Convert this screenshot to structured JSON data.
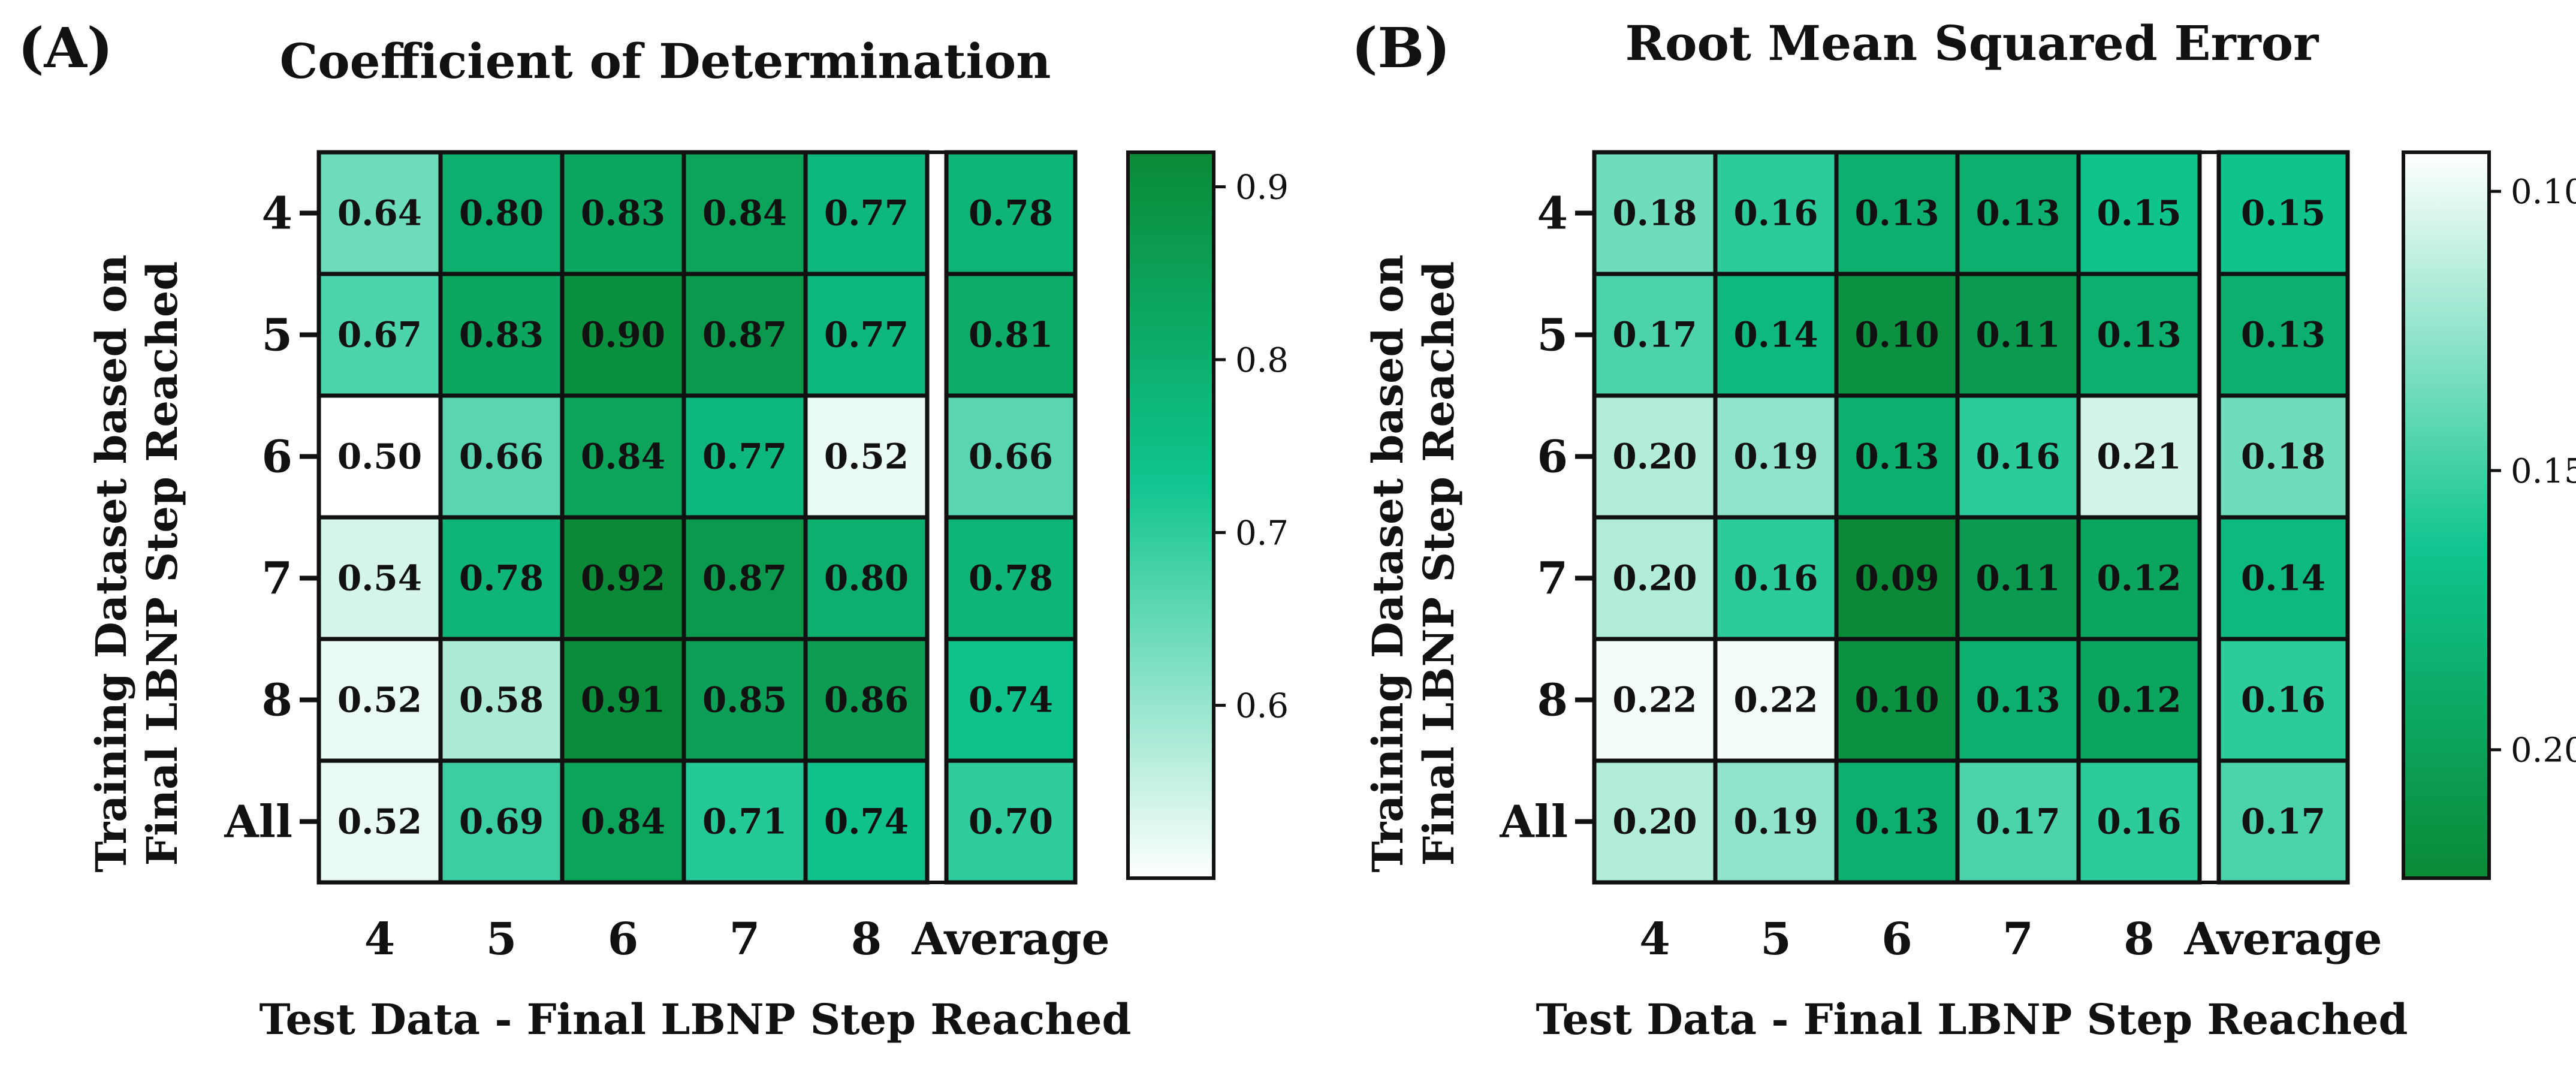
{
  "chart_data": [
    {
      "type": "heatmap",
      "panel_label": "(A)",
      "title": "Coefficient of  Determination",
      "xlabel": "Test Data - Final LBNP Step  Reached",
      "ylabel_lines": [
        "Training Dataset based on",
        "Final LBNP Step Reached"
      ],
      "columns": [
        "4",
        "5",
        "6",
        "7",
        "8",
        "Average"
      ],
      "rows": [
        "4",
        "5",
        "6",
        "7",
        "8",
        "All"
      ],
      "values": [
        [
          0.64,
          0.8,
          0.83,
          0.84,
          0.77,
          0.78
        ],
        [
          0.67,
          0.83,
          0.9,
          0.87,
          0.77,
          0.81
        ],
        [
          0.5,
          0.66,
          0.84,
          0.77,
          0.52,
          0.66
        ],
        [
          0.54,
          0.78,
          0.92,
          0.87,
          0.8,
          0.78
        ],
        [
          0.52,
          0.58,
          0.91,
          0.85,
          0.86,
          0.74
        ],
        [
          0.52,
          0.69,
          0.84,
          0.71,
          0.74,
          0.7
        ]
      ],
      "labels": [
        [
          "0.64",
          "0.80",
          "0.83",
          "0.84",
          "0.77",
          "0.78"
        ],
        [
          "0.67",
          "0.83",
          "0.90",
          "0.87",
          "0.77",
          "0.81"
        ],
        [
          "0.50",
          "0.66",
          "0.84",
          "0.77",
          "0.52",
          "0.66"
        ],
        [
          "0.54",
          "0.78",
          "0.92",
          "0.87",
          "0.80",
          "0.78"
        ],
        [
          "0.52",
          "0.58",
          "0.91",
          "0.85",
          "0.86",
          "0.74"
        ],
        [
          "0.52",
          "0.69",
          "0.84",
          "0.71",
          "0.74",
          "0.70"
        ]
      ],
      "colorbar": {
        "min": 0.5,
        "max": 0.92,
        "ticks": [
          0.6,
          0.7,
          0.8,
          0.9
        ],
        "tick_labels": [
          "0.6",
          "0.7",
          "0.8",
          "0.9"
        ],
        "low_color": "#ffffff",
        "mid_color": "#0fc48e",
        "high_color": "#0a8a36",
        "reversed": false
      }
    },
    {
      "type": "heatmap",
      "panel_label": "(B)",
      "title": "Root Mean Squared Error",
      "xlabel": "Test Data - Final LBNP Step  Reached",
      "ylabel_lines": [
        "Training Dataset based on",
        "Final LBNP Step Reached"
      ],
      "columns": [
        "4",
        "5",
        "6",
        "7",
        "8",
        "Average"
      ],
      "rows": [
        "4",
        "5",
        "6",
        "7",
        "8",
        "All"
      ],
      "values": [
        [
          0.18,
          0.16,
          0.13,
          0.13,
          0.15,
          0.15
        ],
        [
          0.17,
          0.14,
          0.1,
          0.11,
          0.13,
          0.13
        ],
        [
          0.2,
          0.19,
          0.13,
          0.16,
          0.21,
          0.18
        ],
        [
          0.2,
          0.16,
          0.09,
          0.11,
          0.12,
          0.14
        ],
        [
          0.22,
          0.22,
          0.1,
          0.13,
          0.12,
          0.16
        ],
        [
          0.2,
          0.19,
          0.13,
          0.17,
          0.16,
          0.17
        ]
      ],
      "labels": [
        [
          "0.18",
          "0.16",
          "0.13",
          "0.13",
          "0.15",
          "0.15"
        ],
        [
          "0.17",
          "0.14",
          "0.10",
          "0.11",
          "0.13",
          "0.13"
        ],
        [
          "0.20",
          "0.19",
          "0.13",
          "0.16",
          "0.21",
          "0.18"
        ],
        [
          "0.20",
          "0.16",
          "0.09",
          "0.11",
          "0.12",
          "0.14"
        ],
        [
          "0.22",
          "0.22",
          "0.10",
          "0.13",
          "0.12",
          "0.16"
        ],
        [
          "0.20",
          "0.19",
          "0.13",
          "0.17",
          "0.16",
          "0.17"
        ]
      ],
      "colorbar": {
        "min": 0.093,
        "max": 0.223,
        "ticks": [
          0.1,
          0.15,
          0.2
        ],
        "tick_labels": [
          "0.10",
          "0.15",
          "0.20"
        ],
        "low_color": "#ffffff",
        "mid_color": "#0fc48e",
        "high_color": "#0a8a36",
        "reversed": true
      }
    }
  ]
}
